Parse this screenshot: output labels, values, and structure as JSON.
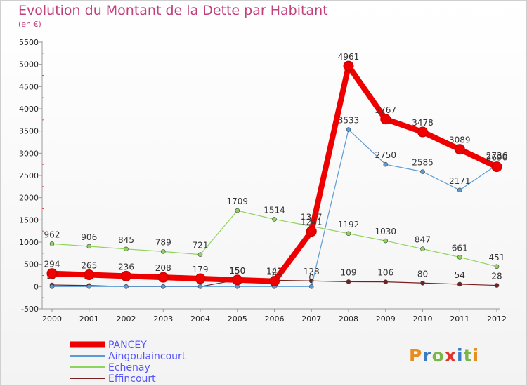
{
  "header": {
    "title": "Evolution du Montant de la Dette par Habitant",
    "subtitle": "(en €)"
  },
  "brand": {
    "name": "Proxiti",
    "colors": [
      "#e88d1f",
      "#3a7cc4",
      "#7ab648",
      "#e1332b",
      "#3a7cc4",
      "#7ab648",
      "#e88d1f"
    ]
  },
  "chart_data": {
    "type": "line",
    "title": "Evolution du Montant de la Dette par Habitant",
    "subtitle": "(en €)",
    "x": [
      "2000",
      "2001",
      "2002",
      "2003",
      "2004",
      "2005",
      "2006",
      "2007",
      "2008",
      "2009",
      "2010",
      "2011",
      "2012"
    ],
    "ylim": [
      -500,
      5500
    ],
    "yticks": [
      -500,
      0,
      500,
      1000,
      1500,
      2000,
      2500,
      3000,
      3500,
      4000,
      4500,
      5000,
      5500
    ],
    "grid": false,
    "legend_position": "bottom-left",
    "series": [
      {
        "name": "Effincourt",
        "color": "#7a1f1f",
        "values": [
          37,
          25,
          0,
          0,
          0,
          150,
          142,
          128,
          109,
          106,
          80,
          54,
          28
        ],
        "labels": [
          "37",
          "25",
          "",
          "",
          "",
          "150",
          "142",
          "128",
          "109",
          "106",
          "80",
          "54",
          "28"
        ]
      },
      {
        "name": "Echenay",
        "color": "#8fd45a",
        "values": [
          962,
          906,
          845,
          789,
          721,
          1709,
          1514,
          1357,
          1192,
          1030,
          847,
          661,
          451
        ],
        "labels": [
          "962",
          "906",
          "845",
          "789",
          "721",
          "1709",
          "1514",
          "1357",
          "1192",
          "1030",
          "847",
          "661",
          "451"
        ]
      },
      {
        "name": "Aingoulaincourt",
        "color": "#5b9bd5",
        "values": [
          0,
          0,
          0,
          0,
          0,
          0,
          0,
          0,
          3533,
          2750,
          2585,
          2171,
          2736
        ],
        "labels": [
          "",
          "",
          "",
          "",
          "",
          "",
          "0",
          "0",
          "3533",
          "2750",
          "2585",
          "2171",
          "2736"
        ]
      },
      {
        "name": "PANCEY",
        "color": "#ee0000",
        "values": [
          294,
          265,
          236,
          208,
          179,
          150,
          121,
          1241,
          4961,
          3767,
          3478,
          3089,
          2696
        ],
        "labels": [
          "294",
          "265",
          "236",
          "208",
          "179",
          "150",
          "121",
          "1241",
          "4961",
          "3767",
          "3478",
          "3089",
          "2696"
        ]
      }
    ],
    "legend": [
      {
        "name": "PANCEY",
        "color": "#ee0000",
        "text_color": "#5555ff",
        "bold": true
      },
      {
        "name": "Aingoulaincourt",
        "color": "#5b9bd5",
        "text_color": "#5555ff"
      },
      {
        "name": "Echenay",
        "color": "#8fd45a",
        "text_color": "#5555ff"
      },
      {
        "name": "Effincourt",
        "color": "#7a1f1f",
        "text_color": "#5555ff"
      }
    ]
  }
}
